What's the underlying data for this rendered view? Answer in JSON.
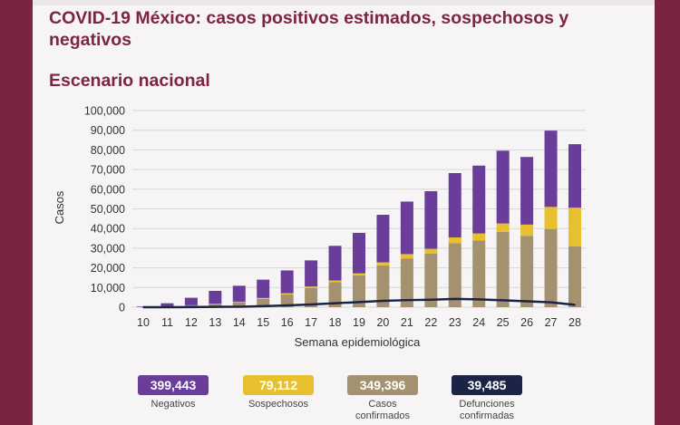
{
  "title": "COVID-19 México: casos positivos estimados, sospechosos y negativos",
  "subtitle": "Escenario nacional",
  "colors": {
    "negativos": "#6a3d9a",
    "sospechosos": "#e8c02e",
    "confirmados": "#a4916f",
    "defunciones": "#1b2447",
    "grid": "#d6d6d6",
    "frame": "#7a2440",
    "title": "#7e2443"
  },
  "chart_data": {
    "type": "bar",
    "stacked": true,
    "xlabel": "Semana epidemiológica",
    "ylabel": "Casos",
    "ylim": [
      0,
      100000
    ],
    "yticks": [
      "0",
      "10,000",
      "20,000",
      "30,000",
      "40,000",
      "50,000",
      "60,000",
      "70,000",
      "80,000",
      "90,000",
      "100,000"
    ],
    "ytick_values": [
      0,
      10000,
      20000,
      30000,
      40000,
      50000,
      60000,
      70000,
      80000,
      90000,
      100000
    ],
    "grid": true,
    "categories": [
      "10",
      "11",
      "12",
      "13",
      "14",
      "15",
      "16",
      "17",
      "18",
      "19",
      "20",
      "21",
      "22",
      "23",
      "24",
      "25",
      "26",
      "27",
      "28"
    ],
    "series": [
      {
        "key": "confirmados",
        "values": [
          50,
          300,
          900,
          1500,
          2500,
          4200,
          6500,
          9800,
          12800,
          16200,
          21300,
          24800,
          27200,
          32500,
          34000,
          38300,
          36300,
          39800,
          31000
        ]
      },
      {
        "key": "sospechosos",
        "values": [
          0,
          0,
          100,
          200,
          300,
          500,
          600,
          700,
          800,
          1000,
          1500,
          2200,
          2500,
          3000,
          3500,
          4300,
          5700,
          11200,
          19600
        ]
      },
      {
        "key": "negativos",
        "values": [
          300,
          1700,
          3800,
          6600,
          8100,
          9300,
          11600,
          13300,
          17600,
          20600,
          24200,
          26700,
          29300,
          32700,
          34500,
          37000,
          34400,
          38800,
          32300
        ]
      }
    ],
    "line": {
      "key": "defunciones",
      "values": [
        0,
        10,
        50,
        150,
        250,
        500,
        900,
        1400,
        2000,
        2600,
        3200,
        3600,
        3800,
        4200,
        4000,
        3500,
        3000,
        2500,
        1200
      ]
    }
  },
  "legend": [
    {
      "value": "399,443",
      "label": "Negativos",
      "color_key": "negativos"
    },
    {
      "value": "79,112",
      "label": "Sospechosos",
      "color_key": "sospechosos"
    },
    {
      "value": "349,396",
      "label": "Casos confirmados",
      "color_key": "confirmados"
    },
    {
      "value": "39,485",
      "label": "Defunciones confirmadas",
      "color_key": "defunciones"
    }
  ]
}
